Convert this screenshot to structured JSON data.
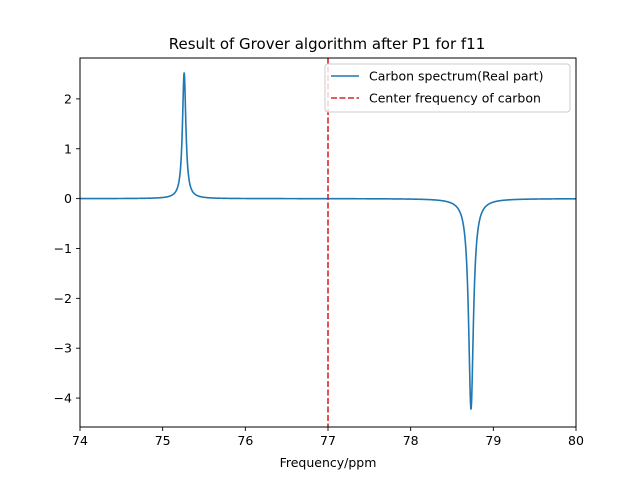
{
  "chart_data": {
    "type": "line",
    "title": "Result of Grover algorithm after P1 for f11",
    "xlabel": "Frequency/ppm",
    "ylabel": "",
    "xlim": [
      74,
      80
    ],
    "ylim": [
      -4.58,
      2.82
    ],
    "xticks": [
      74,
      75,
      76,
      77,
      78,
      79,
      80
    ],
    "yticks": [
      -4,
      -3,
      -2,
      -1,
      0,
      1,
      2
    ],
    "ytick_labels": [
      "−4",
      "−3",
      "−2",
      "−1",
      "0",
      "1",
      "2"
    ],
    "grid": false,
    "legend_position": "top-right",
    "series": [
      {
        "name": "Carbon spectrum(Real part)",
        "color": "#1f77b4",
        "style": "solid",
        "peaks": [
          {
            "center": 75.26,
            "height": 2.52,
            "width": 0.025
          },
          {
            "center": 78.73,
            "height": -4.22,
            "width": 0.035
          }
        ]
      },
      {
        "name": "Center frequency of carbon",
        "color": "#d62728",
        "style": "dashed",
        "x": 77
      }
    ]
  }
}
